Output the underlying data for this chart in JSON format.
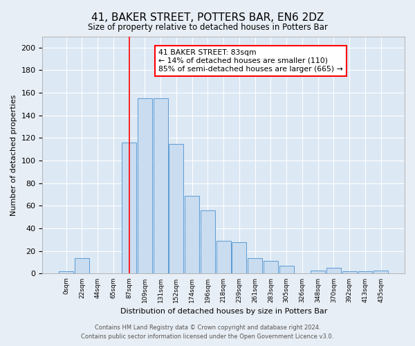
{
  "title": "41, BAKER STREET, POTTERS BAR, EN6 2DZ",
  "subtitle": "Size of property relative to detached houses in Potters Bar",
  "xlabel": "Distribution of detached houses by size in Potters Bar",
  "ylabel": "Number of detached properties",
  "bin_labels": [
    "0sqm",
    "22sqm",
    "44sqm",
    "65sqm",
    "87sqm",
    "109sqm",
    "131sqm",
    "152sqm",
    "174sqm",
    "196sqm",
    "218sqm",
    "239sqm",
    "261sqm",
    "283sqm",
    "305sqm",
    "326sqm",
    "348sqm",
    "370sqm",
    "392sqm",
    "413sqm",
    "435sqm"
  ],
  "bar_heights": [
    2,
    14,
    0,
    0,
    116,
    155,
    155,
    115,
    69,
    56,
    29,
    28,
    14,
    11,
    7,
    0,
    3,
    5,
    2,
    2,
    3
  ],
  "bar_color": "#c9dcf0",
  "bar_edge_color": "#5b9bd5",
  "ylim": [
    0,
    210
  ],
  "yticks": [
    0,
    20,
    40,
    60,
    80,
    100,
    120,
    140,
    160,
    180,
    200
  ],
  "vline_x_index": 4,
  "annotation_title": "41 BAKER STREET: 83sqm",
  "annotation_line1": "← 14% of detached houses are smaller (110)",
  "annotation_line2": "85% of semi-detached houses are larger (665) →",
  "footer_line1": "Contains HM Land Registry data © Crown copyright and database right 2024.",
  "footer_line2": "Contains public sector information licensed under the Open Government Licence v3.0.",
  "bg_color": "#e8eef5",
  "plot_bg_color": "#dce8f4"
}
